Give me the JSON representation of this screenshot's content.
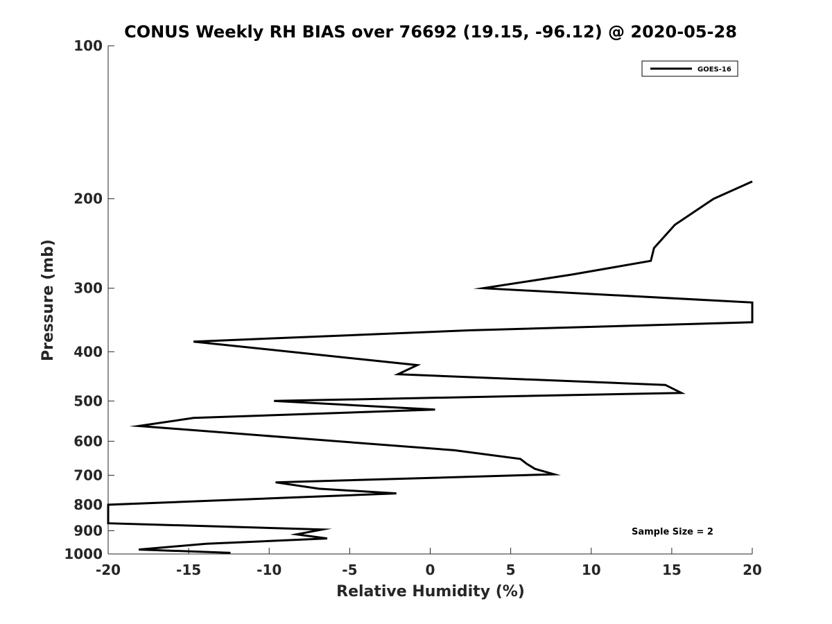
{
  "chart_data": {
    "type": "line",
    "title": "CONUS Weekly RH BIAS over 76692 (19.15, -96.12) @ 2020-05-28",
    "xlabel": "Relative Humidity (%)",
    "ylabel": "Pressure (mb)",
    "xlim": [
      -20,
      20
    ],
    "ylim": [
      100,
      1000
    ],
    "yscale": "log",
    "y_reversed": true,
    "x_ticks": [
      "-20",
      "-15",
      "-10",
      "-5",
      "0",
      "5",
      "10",
      "15",
      "20"
    ],
    "y_ticks": [
      "100",
      "200",
      "300",
      "400",
      "500",
      "600",
      "700",
      "800",
      "900",
      "1000"
    ],
    "grid": false,
    "legend_position": "top-right",
    "annotation": "Sample Size = 2",
    "series": [
      {
        "name": "GOES-16",
        "color": "#000000",
        "points": [
          [
            20,
            185
          ],
          [
            17.6,
            200
          ],
          [
            15.2,
            225
          ],
          [
            13.9,
            250
          ],
          [
            13.7,
            265
          ],
          [
            8.8,
            282
          ],
          [
            3.3,
            300
          ],
          [
            20,
            320
          ],
          [
            20,
            350
          ],
          [
            2.5,
            363
          ],
          [
            -14.7,
            382
          ],
          [
            -0.8,
            425
          ],
          [
            -2,
            443
          ],
          [
            14.6,
            465
          ],
          [
            15.6,
            482
          ],
          [
            -9.7,
            500
          ],
          [
            0.3,
            520
          ],
          [
            -14.7,
            540
          ],
          [
            -18.1,
            560
          ],
          [
            1.5,
            625
          ],
          [
            5.6,
            650
          ],
          [
            6,
            665
          ],
          [
            6.5,
            680
          ],
          [
            7.7,
            697
          ],
          [
            -9.6,
            723
          ],
          [
            -6.9,
            744
          ],
          [
            -2.1,
            760
          ],
          [
            -20,
            800
          ],
          [
            -20,
            870
          ],
          [
            -6.7,
            895
          ],
          [
            -8.3,
            915
          ],
          [
            -6.4,
            932
          ],
          [
            -13.9,
            955
          ],
          [
            -18.1,
            980
          ],
          [
            -12.4,
            995
          ]
        ]
      }
    ]
  }
}
